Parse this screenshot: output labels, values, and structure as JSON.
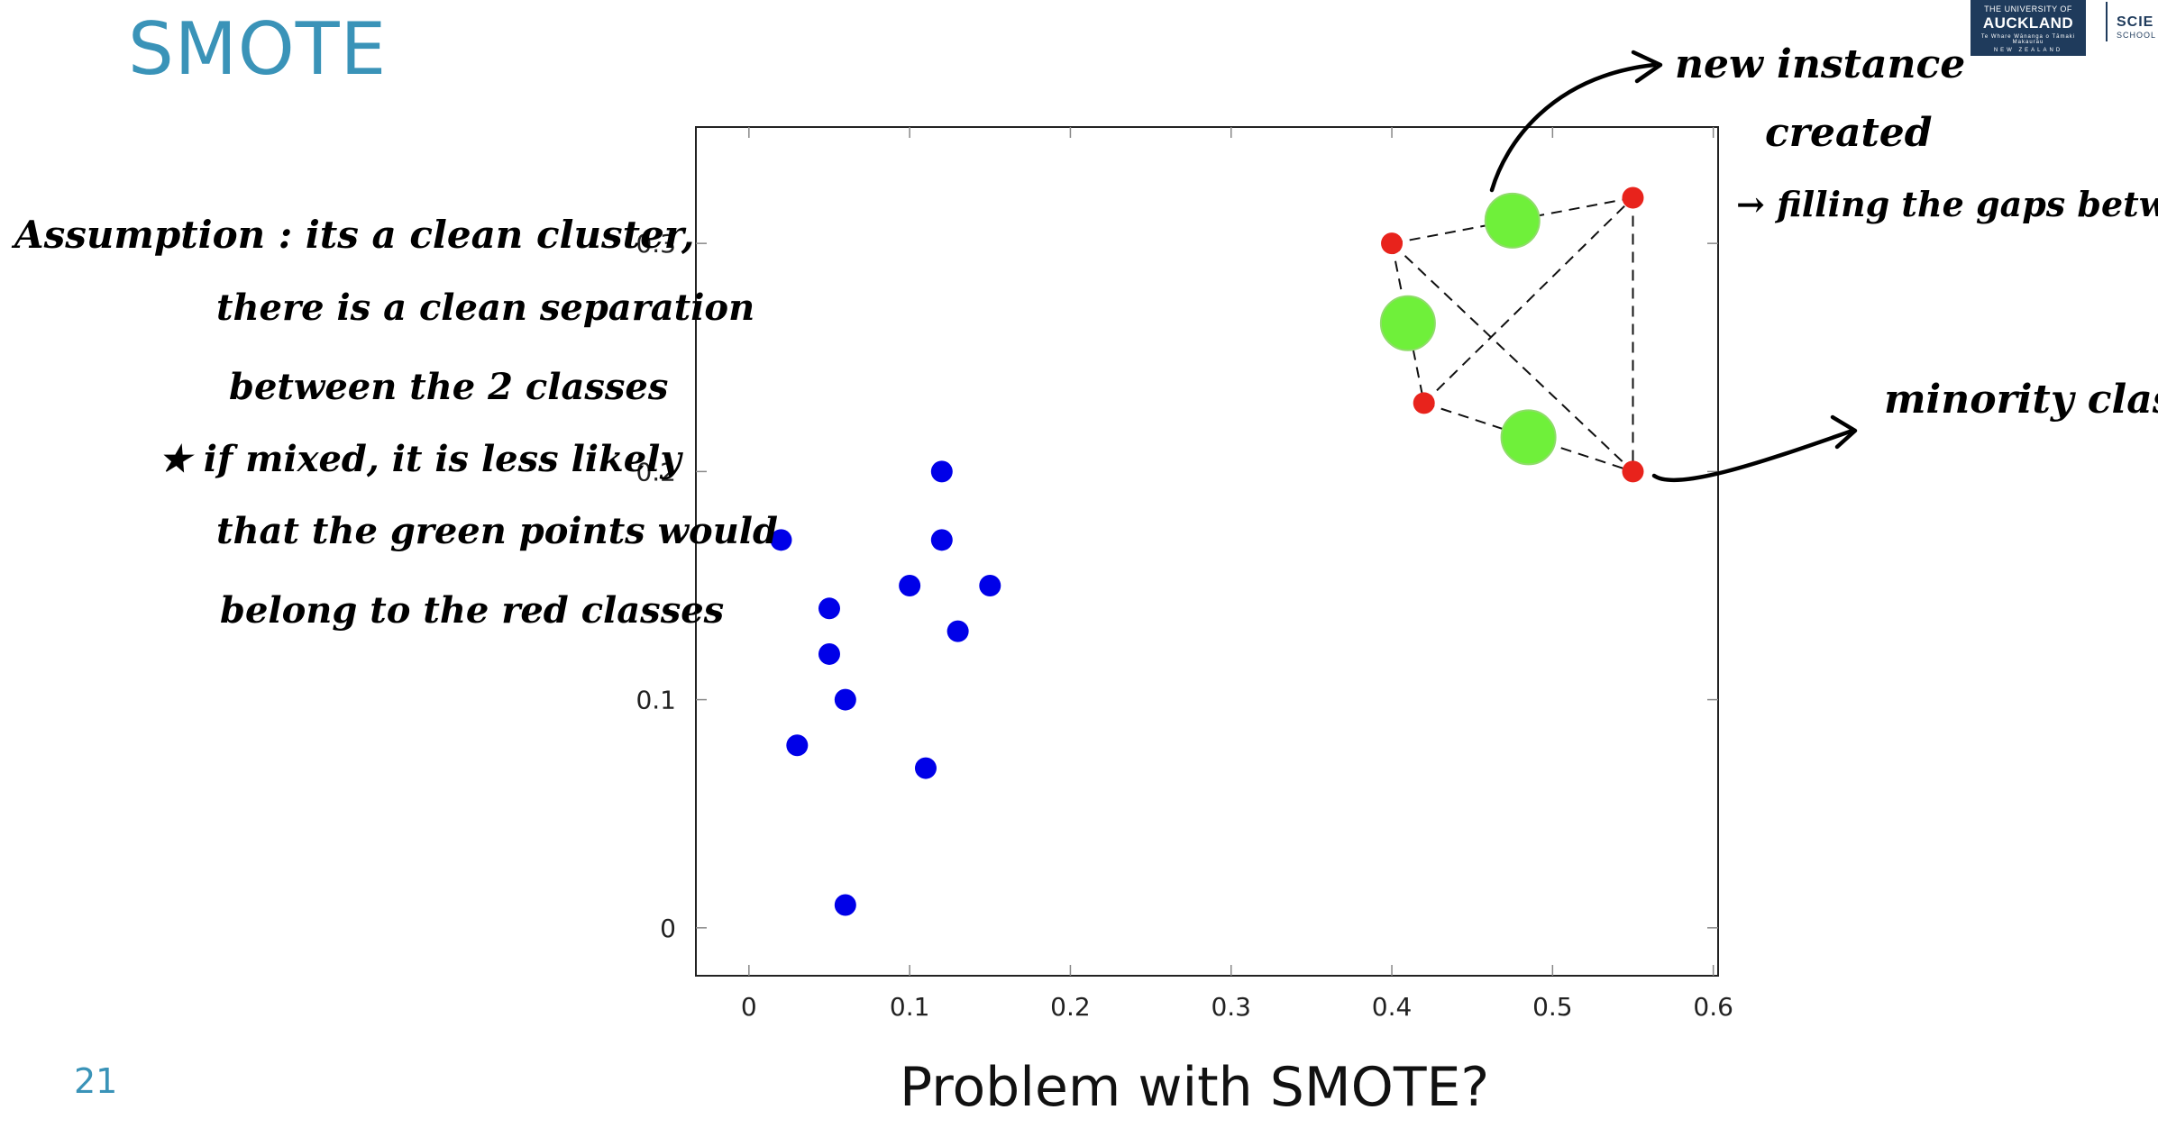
{
  "slide": {
    "title": "SMOTE",
    "page_number": "21",
    "question": "Problem with SMOTE?"
  },
  "logo": {
    "line1": "THE UNIVERSITY OF",
    "line2": "AUCKLAND",
    "line3": "Te Whare Wānanga o Tāmaki Makaurau",
    "line4": "NEW ZEALAND",
    "school_line1": "SCIE",
    "school_line2": "SCHOOL"
  },
  "annotations": {
    "assumption_1": "Assumption : its a clean cluster,",
    "assumption_2": "there is a clean separation",
    "assumption_3": "between the 2 classes",
    "assumption_4": "★ if mixed, it is less likely",
    "assumption_5": "that the green points would",
    "assumption_6": "belong to the red classes",
    "new_instance_1": "new instance",
    "new_instance_2": "created",
    "filling_gaps": "→ filling the gaps between",
    "minority_class": "minority class"
  },
  "colors": {
    "title": "#3a93b8",
    "majority": "#0000e8",
    "minority": "#e8231c",
    "synthetic": "#6ff03a"
  },
  "chart_data": {
    "type": "scatter",
    "xlim": [
      -0.033,
      0.603
    ],
    "ylim": [
      -0.021,
      0.351
    ],
    "xticks": [
      0,
      0.1,
      0.2,
      0.3,
      0.4,
      0.5,
      0.6
    ],
    "yticks": [
      0,
      0.1,
      0.2,
      0.3
    ],
    "xtick_labels": [
      "0",
      "0.1",
      "0.2",
      "0.3",
      "0.4",
      "0.5",
      "0.6"
    ],
    "ytick_labels": [
      "0",
      "0.1",
      "0.2",
      "0.3"
    ],
    "xlabel": "",
    "ylabel": "",
    "grid": false,
    "series": [
      {
        "color": "#0000e8",
        "points": [
          [
            0.02,
            0.17
          ],
          [
            0.05,
            0.14
          ],
          [
            0.05,
            0.12
          ],
          [
            0.06,
            0.1
          ],
          [
            0.03,
            0.08
          ],
          [
            0.06,
            0.01
          ],
          [
            0.1,
            0.15
          ],
          [
            0.11,
            0.07
          ],
          [
            0.12,
            0.2
          ],
          [
            0.12,
            0.17
          ],
          [
            0.13,
            0.13
          ],
          [
            0.15,
            0.15
          ]
        ]
      },
      {
        "color": "#e8231c",
        "points": [
          [
            0.4,
            0.3
          ],
          [
            0.42,
            0.23
          ],
          [
            0.55,
            0.32
          ],
          [
            0.55,
            0.2
          ]
        ]
      },
      {
        "color": "#6ff03a",
        "points": [
          [
            0.41,
            0.265
          ],
          [
            0.475,
            0.31
          ],
          [
            0.485,
            0.215
          ]
        ]
      }
    ],
    "connections": [
      [
        0,
        2
      ],
      [
        0,
        3
      ],
      [
        1,
        2
      ],
      [
        1,
        3
      ],
      [
        0,
        1
      ],
      [
        2,
        3
      ]
    ]
  }
}
